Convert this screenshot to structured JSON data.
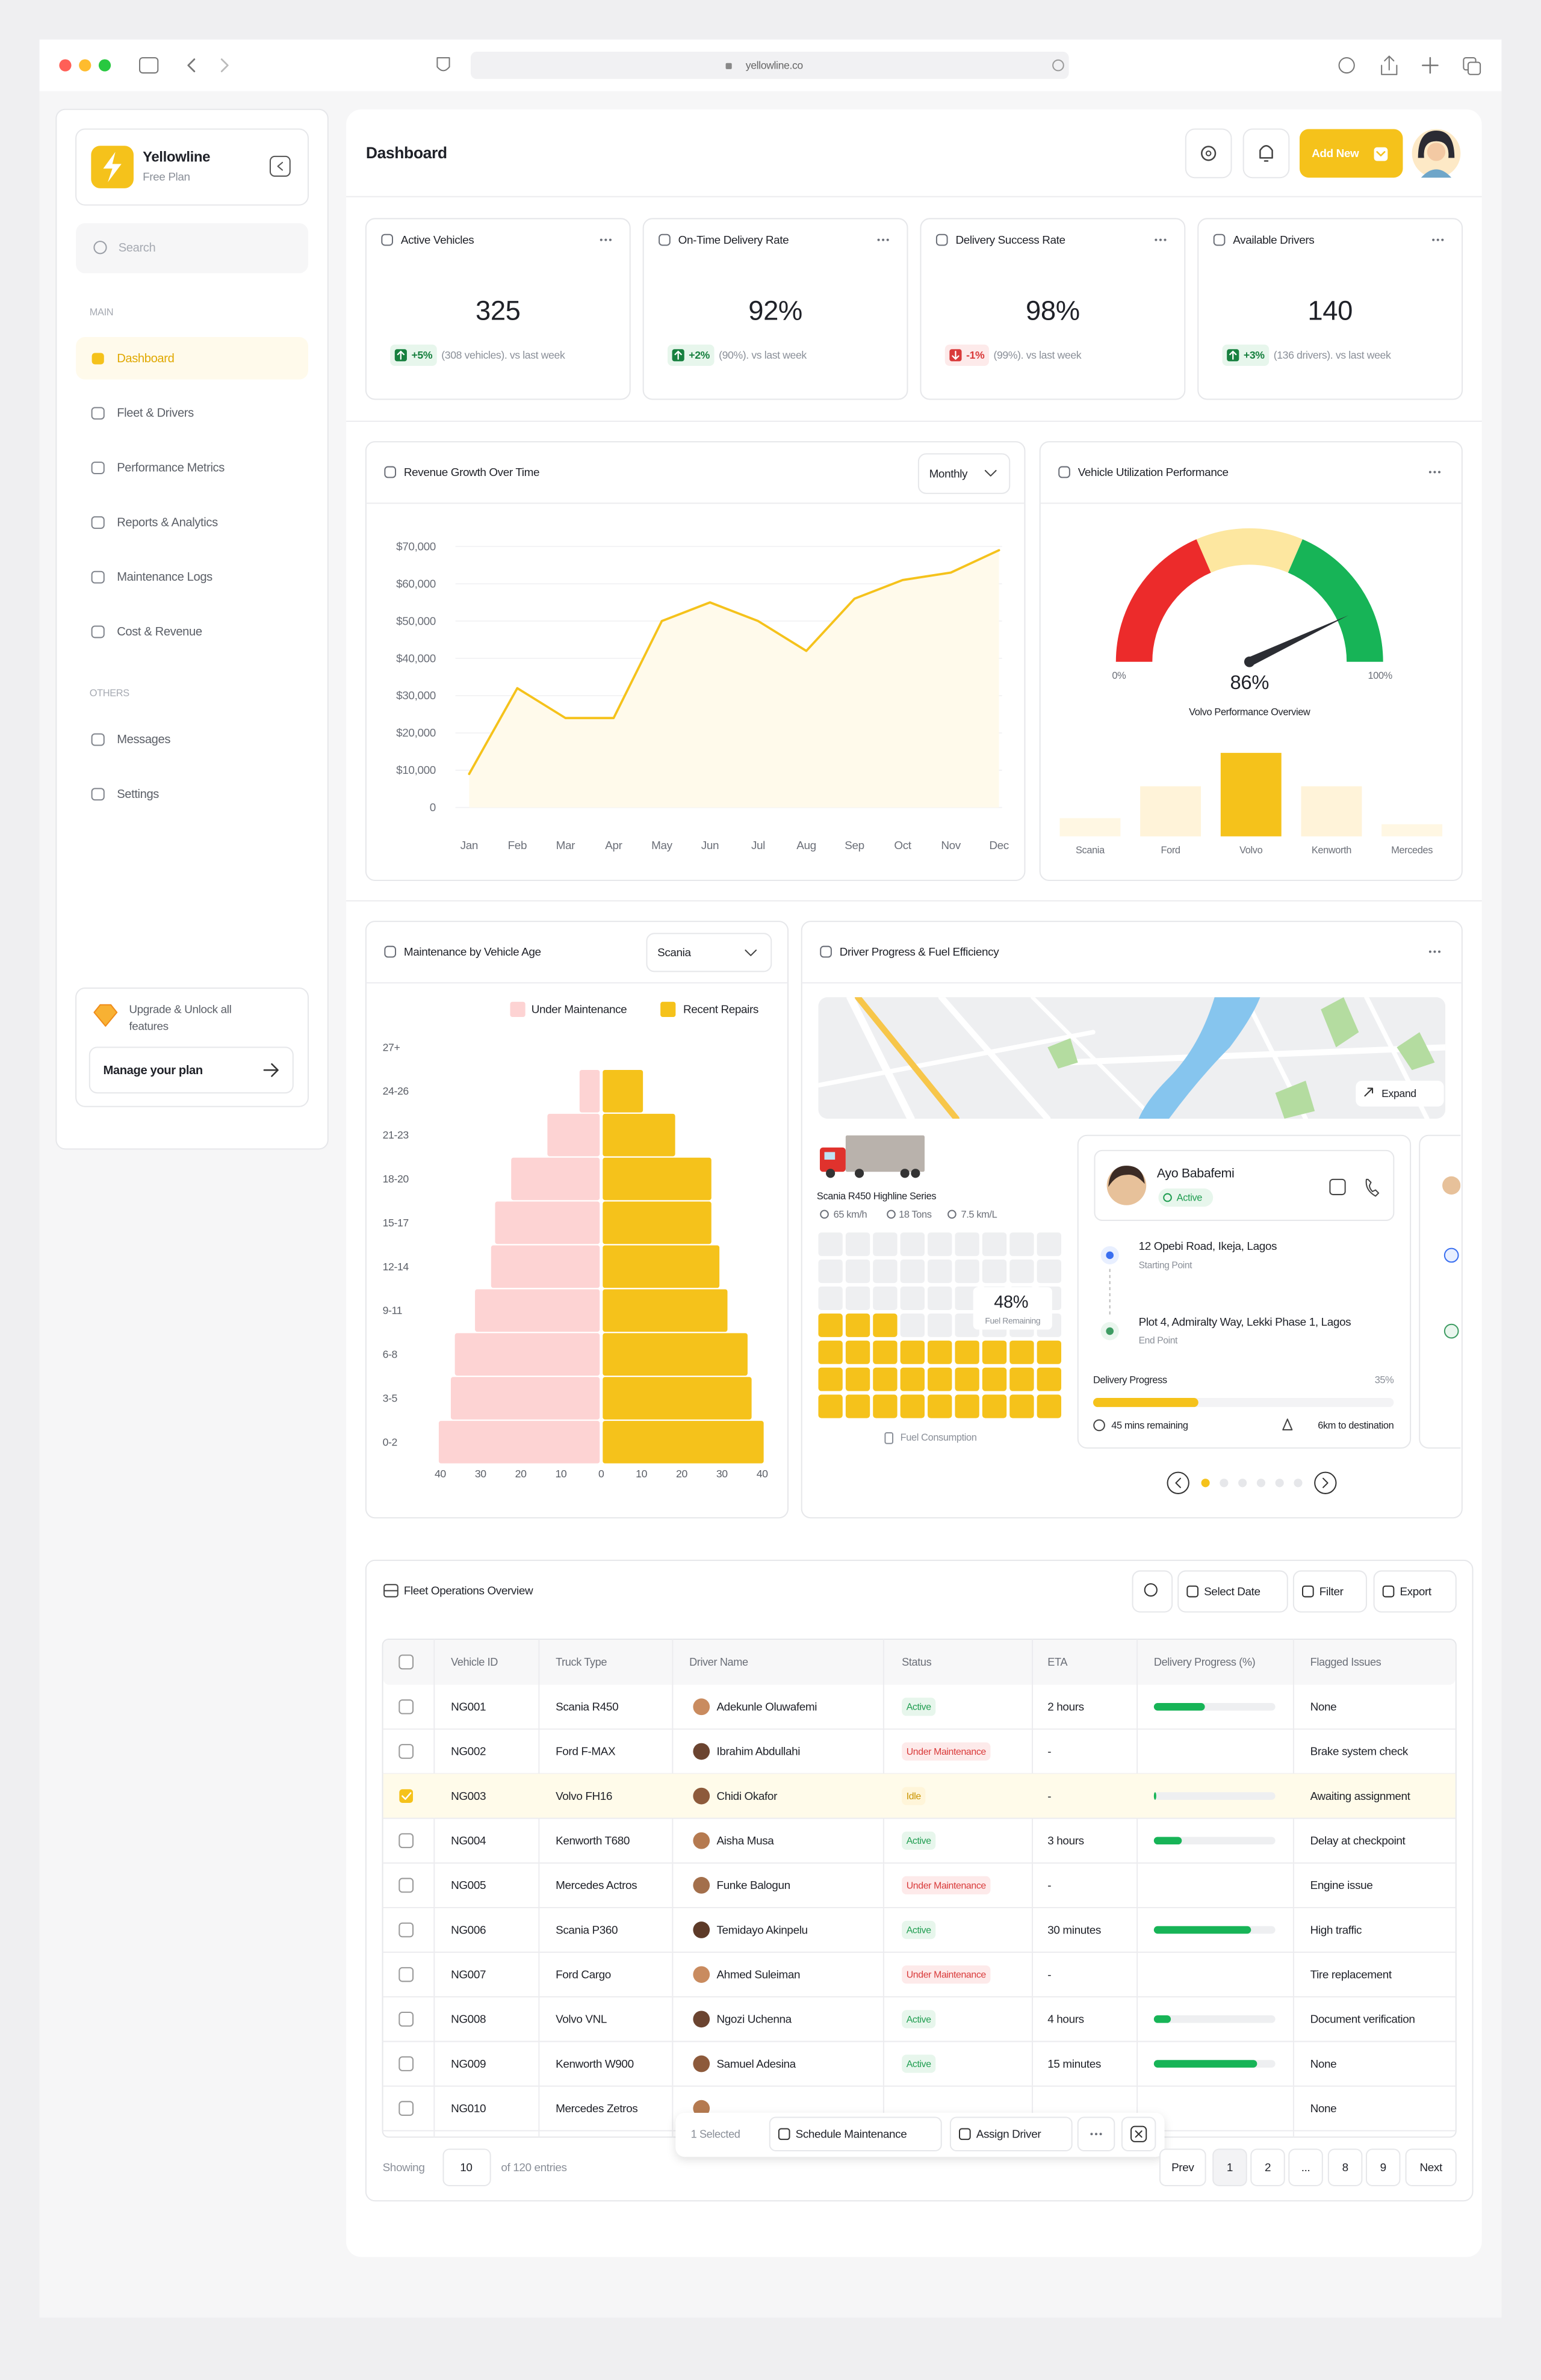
{
  "browser": {
    "url": "yellowline.co"
  },
  "sidebar": {
    "brand": "Yellowline",
    "plan": "Free Plan",
    "search": "Search",
    "sections": [
      {
        "title": "MAIN",
        "items": [
          "Dashboard",
          "Fleet & Drivers",
          "Performance Metrics",
          "Reports & Analytics",
          "Maintenance Logs",
          "Cost & Revenue"
        ]
      },
      {
        "title": "OTHERS",
        "items": [
          "Messages",
          "Settings"
        ]
      }
    ],
    "upgrade": {
      "lines": [
        "Upgrade & Unlock all",
        "features"
      ],
      "button": "Manage your plan"
    }
  },
  "header": {
    "title": "Dashboard",
    "add_new": "Add New"
  },
  "kpis": [
    {
      "title": "Active Vehicles",
      "value": "325",
      "change": "+5%",
      "note": "(308 vehicles). vs last week",
      "trend": "up"
    },
    {
      "title": "On-Time Delivery Rate",
      "value": "92%",
      "change": "+2%",
      "note": "(90%). vs last week",
      "trend": "up"
    },
    {
      "title": "Delivery Success Rate",
      "value": "98%",
      "change": "-1%",
      "note": "(99%). vs last week",
      "trend": "down"
    },
    {
      "title": "Available Drivers",
      "value": "140",
      "change": "+3%",
      "note": "(136 drivers). vs last week",
      "trend": "up"
    }
  ],
  "chart_data": [
    {
      "type": "line",
      "title": "Revenue Growth Over Time",
      "period": "Monthly",
      "categories": [
        "Jan",
        "Feb",
        "Mar",
        "Apr",
        "May",
        "Jun",
        "Jul",
        "Aug",
        "Sep",
        "Oct",
        "Nov",
        "Dec"
      ],
      "values": [
        9000,
        32000,
        24000,
        24000,
        50000,
        55000,
        50000,
        42000,
        56000,
        61000,
        63000,
        69000
      ],
      "ylim": [
        0,
        70000
      ],
      "yticks": [
        0,
        {
          "value": 10000,
          "label": "$10,000"
        },
        {
          "value": 20000,
          "label": "$20,000"
        },
        {
          "value": 30000,
          "label": "$30,000"
        },
        {
          "value": 40000,
          "label": "$40,000"
        },
        {
          "value": 50000,
          "label": "$50,000"
        },
        {
          "value": 60000,
          "label": "$60,000"
        },
        {
          "value": 70000,
          "label": "$70,000"
        }
      ],
      "grid": true,
      "color": "#f5c21b",
      "fill": "#fffaeb"
    },
    {
      "type": "gauge",
      "title": "Vehicle Utilization Performance",
      "value": 86,
      "value_label": "86%",
      "scale": [
        {
          "value": 0,
          "label": "0%"
        },
        {
          "value": 100,
          "label": "100%"
        }
      ],
      "bands": [
        {
          "to": 37,
          "color": "#ec2b2b"
        },
        {
          "to": 63,
          "color": "#fde7a0"
        },
        {
          "to": 100,
          "color": "#17b457"
        }
      ],
      "subtitle": "Volvo Performance Overview",
      "categories": [
        "Scania",
        "Ford",
        "Volvo",
        "Kenworth",
        "Mercedes"
      ],
      "values": [
        12,
        33,
        55,
        33,
        8
      ],
      "colors": [
        "#fff7e3",
        "#fff3d9",
        "#f5c21b",
        "#fff3d9",
        "#fff7e3"
      ]
    },
    {
      "type": "pyramid",
      "title": "Maintenance by Vehicle Age",
      "filter": "Scania",
      "categories": [
        "27+",
        "24-26",
        "21-23",
        "18-20",
        "15-17",
        "12-14",
        "9-11",
        "6-8",
        "3-5",
        "0-2"
      ],
      "series": [
        {
          "name": "Under Maintenance",
          "color": "#fdd3d3",
          "values": [
            0,
            5,
            13,
            22,
            26,
            27,
            31,
            36,
            37,
            40
          ]
        },
        {
          "name": "Recent Repairs",
          "color": "#f5c21b",
          "values": [
            0,
            10,
            18,
            27,
            27,
            29,
            31,
            36,
            37,
            40
          ]
        }
      ],
      "xlim": [
        0,
        40
      ],
      "xticks": [
        0,
        10,
        20,
        30,
        40
      ]
    }
  ],
  "driver_progress": {
    "title": "Driver Progress & Fuel Efficiency",
    "expand": "Expand",
    "truck": {
      "name": "Scania R450 Highline Series",
      "speed": "65 km/h",
      "load": "18 Tons",
      "efficiency": "7.5 km/L"
    },
    "fuel": {
      "value": 48,
      "label": "48%",
      "caption": "Fuel Remaining",
      "footer": "Fuel Consumption"
    },
    "driver": {
      "name": "Ayo Babafemi",
      "status": "Active",
      "start": "12 Opebi Road, Ikeja, Lagos",
      "start_label": "Starting Point",
      "end": "Plot 4, Admiralty Way, Lekki Phase 1, Lagos",
      "end_label": "End Point",
      "progress_label": "Delivery Progress",
      "progress": 35,
      "progress_text": "35%",
      "remaining": "45 mins remaining",
      "distance": "6km to destination"
    }
  },
  "table": {
    "title": "Fleet Operations Overview",
    "tools": [
      "Select Date",
      "Filter",
      "Export"
    ],
    "columns": [
      "Vehicle ID",
      "Truck Type",
      "Driver Name",
      "Status",
      "ETA",
      "Delivery Progress (%)",
      "Flagged Issues"
    ],
    "rows": [
      {
        "id": "NG001",
        "truck": "Scania R450",
        "driver": "Adekunle Oluwafemi",
        "status": "Active",
        "tone": "green",
        "eta": "2 hours",
        "progress": 42,
        "issue": "None"
      },
      {
        "id": "NG002",
        "truck": "Ford F-MAX",
        "driver": "Ibrahim Abdullahi",
        "status": "Under Maintenance",
        "tone": "red",
        "eta": "-",
        "issue": "Brake system check"
      },
      {
        "id": "NG003",
        "truck": "Volvo FH16",
        "driver": "Chidi Okafor",
        "status": "Idle",
        "tone": "yellow",
        "eta": "-",
        "progress": 2,
        "issue": "Awaiting assignment",
        "selected": true
      },
      {
        "id": "NG004",
        "truck": "Kenworth T680",
        "driver": "Aisha Musa",
        "status": "Active",
        "tone": "green",
        "eta": "3 hours",
        "progress": 23,
        "issue": "Delay at checkpoint"
      },
      {
        "id": "NG005",
        "truck": "Mercedes Actros",
        "driver": "Funke Balogun",
        "status": "Under Maintenance",
        "tone": "red",
        "eta": "-",
        "issue": "Engine issue"
      },
      {
        "id": "NG006",
        "truck": "Scania P360",
        "driver": "Temidayo Akinpelu",
        "status": "Active",
        "tone": "green",
        "eta": "30 minutes",
        "progress": 80,
        "issue": "High traffic"
      },
      {
        "id": "NG007",
        "truck": "Ford Cargo",
        "driver": "Ahmed Suleiman",
        "status": "Under Maintenance",
        "tone": "red",
        "eta": "-",
        "issue": "Tire replacement"
      },
      {
        "id": "NG008",
        "truck": "Volvo VNL",
        "driver": "Ngozi Uchenna",
        "status": "Active",
        "tone": "green",
        "eta": "4 hours",
        "progress": 14,
        "issue": "Document verification"
      },
      {
        "id": "NG009",
        "truck": "Kenworth W900",
        "driver": "Samuel Adesina",
        "status": "Active",
        "tone": "green",
        "eta": "15 minutes",
        "progress": 85,
        "issue": "None"
      },
      {
        "id": "NG010",
        "truck": "Mercedes Zetros",
        "issue": "None"
      }
    ],
    "bulk": {
      "selected": "1 Selected",
      "actions": [
        "Schedule Maintenance",
        "Assign Driver"
      ]
    },
    "footer": {
      "showing": "Showing",
      "per_page": "10",
      "total": "of 120 entries",
      "pages": [
        "Prev",
        "1",
        "2",
        "...",
        "8",
        "9",
        "Next"
      ]
    }
  }
}
